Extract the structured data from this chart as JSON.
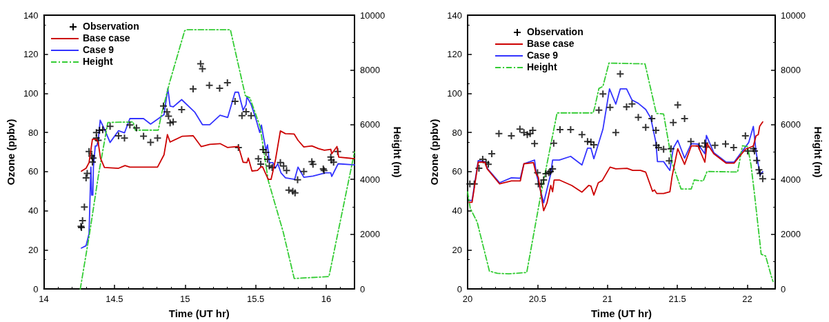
{
  "chart_data": [
    {
      "type": "line",
      "xlabel": "Time (UT hr)",
      "ylabel": "Ozone (ppbv)",
      "y2label": "Height (m)",
      "xlim": [
        14,
        16.2
      ],
      "xticks": [
        14,
        14.5,
        15,
        15.5,
        16
      ],
      "ylim": [
        0,
        140
      ],
      "yticks": [
        0,
        20,
        40,
        60,
        80,
        100,
        120,
        140
      ],
      "y2lim": [
        0,
        10000
      ],
      "y2ticks": [
        0,
        2000,
        4000,
        6000,
        8000,
        10000
      ],
      "grid": false,
      "legend": "top left",
      "series": [
        {
          "name": "Observation",
          "type": "scatter",
          "marker": "cross",
          "color": "#000000",
          "x": [
            14.263,
            14.266,
            14.274,
            14.287,
            14.299,
            14.307,
            14.32,
            14.339,
            14.349,
            14.344,
            14.372,
            14.372,
            14.385,
            14.394,
            14.417,
            14.469,
            14.529,
            14.571,
            14.609,
            14.656,
            14.706,
            14.756,
            14.805,
            14.847,
            14.872,
            14.883,
            14.894,
            14.916,
            14.976,
            15.057,
            15.11,
            15.123,
            15.172,
            15.245,
            15.3,
            15.354,
            15.378,
            15.403,
            15.432,
            15.468,
            15.519,
            15.536,
            15.552,
            15.573,
            15.584,
            15.597,
            15.617,
            15.675,
            15.698,
            15.719,
            15.735,
            15.763,
            15.779,
            15.797,
            15.841,
            15.898,
            15.906,
            15.979,
            15.984,
            16.032,
            16.036,
            16.052,
            16.081
          ],
          "values": [
            32,
            31.4,
            34.9,
            41.9,
            56.8,
            59.1,
            70.3,
            68,
            66.9,
            64.9,
            77.1,
            80,
            76,
            81.1,
            81.4,
            83.1,
            78.3,
            77.1,
            83.8,
            82.3,
            78.1,
            74.9,
            77.1,
            93.5,
            90.5,
            88.3,
            84.9,
            85.4,
            91.7,
            102.3,
            115.1,
            112.6,
            104.1,
            102.6,
            105.4,
            95.9,
            72.3,
            88.6,
            90.6,
            88.6,
            66.6,
            63.8,
            71.2,
            69.8,
            66.3,
            62.9,
            62.1,
            64.6,
            62.9,
            60.6,
            50.5,
            49.9,
            49.1,
            55.8,
            60,
            65.1,
            63.7,
            61.4,
            60.6,
            67.4,
            65.9,
            64.8,
            70.3
          ]
        },
        {
          "name": "Base case",
          "type": "line",
          "marker": "none",
          "line_style": "solid",
          "color": "#cc0000",
          "x": [
            14.266,
            14.299,
            14.32,
            14.344,
            14.372,
            14.385,
            14.401,
            14.429,
            14.529,
            14.575,
            14.609,
            14.805,
            14.851,
            14.875,
            14.894,
            14.981,
            15.058,
            15.114,
            15.175,
            15.248,
            15.302,
            15.378,
            15.411,
            15.438,
            15.448,
            15.474,
            15.513,
            15.536,
            15.549,
            15.589,
            15.609,
            15.622,
            15.641,
            15.675,
            15.711,
            15.773,
            15.8,
            15.841,
            15.898,
            15.946,
            15.987,
            16.032,
            16.039,
            16.076,
            16.088,
            16.2
          ],
          "values": [
            60.2,
            61.7,
            64.6,
            76.6,
            76.6,
            74.9,
            66.9,
            62.1,
            61.7,
            63.1,
            62.3,
            62.3,
            68.6,
            78.9,
            75.1,
            78.1,
            78.3,
            72.8,
            73.9,
            74.3,
            72.3,
            72.9,
            64.8,
            64.6,
            66.9,
            60.3,
            60.6,
            62.3,
            62.5,
            56,
            56,
            60,
            66.3,
            80.8,
            79.4,
            79.2,
            76,
            72.6,
            73.1,
            71.7,
            70.9,
            71.4,
            69.1,
            72.8,
            67.4,
            66.6
          ]
        },
        {
          "name": "Case 9",
          "type": "line",
          "marker": "none",
          "line_style": "solid",
          "color": "#3333ff",
          "x": [
            14.266,
            14.299,
            14.32,
            14.333,
            14.339,
            14.347,
            14.351,
            14.364,
            14.375,
            14.385,
            14.399,
            14.429,
            14.469,
            14.529,
            14.571,
            14.609,
            14.706,
            14.756,
            14.851,
            14.878,
            14.894,
            14.916,
            14.976,
            15.07,
            15.123,
            15.175,
            15.248,
            15.302,
            15.354,
            15.378,
            15.411,
            15.432,
            15.438,
            15.468,
            15.5,
            15.529,
            15.541,
            15.554,
            15.573,
            15.584,
            15.597,
            15.622,
            15.638,
            15.657,
            15.679,
            15.711,
            15.776,
            15.8,
            15.841,
            15.906,
            15.995,
            16.032,
            16.039,
            16.084,
            16.2
          ],
          "values": [
            20.9,
            22.1,
            28.2,
            62.3,
            48,
            48,
            62.3,
            73.1,
            73.1,
            76,
            86.3,
            81.7,
            74.9,
            80.9,
            79.8,
            87.1,
            87.1,
            84.3,
            89.1,
            102.6,
            93.5,
            93.1,
            96.8,
            90.3,
            84,
            84,
            88.8,
            87.7,
            100.6,
            100.6,
            91.4,
            94.3,
            98.3,
            94.3,
            87.4,
            80,
            83.8,
            78.3,
            70.9,
            73.7,
            64.6,
            64.6,
            61.7,
            64,
            59.4,
            56.8,
            56,
            62.3,
            57.1,
            57.7,
            59.4,
            59.4,
            57.5,
            64,
            63.4
          ]
        },
        {
          "name": "Height",
          "type": "line",
          "axis": "y2",
          "marker": "none",
          "line_style": "dashed",
          "color": "#33cc33",
          "x": [
            14.258,
            14.323,
            14.388,
            14.453,
            14.632,
            14.648,
            14.81,
            14.834,
            14.891,
            14.997,
            15.013,
            15.321,
            15.427,
            15.459,
            15.532,
            15.589,
            15.695,
            15.773,
            16.019,
            16.2
          ],
          "values": [
            0,
            2000,
            4200,
            6080,
            6100,
            5800,
            5800,
            6400,
            7550,
            9430,
            9470,
            9470,
            7060,
            6980,
            5920,
            3960,
            2080,
            380,
            450,
            5000
          ]
        }
      ]
    },
    {
      "type": "line",
      "xlabel": "Time (UT hr)",
      "ylabel": "Ozone (ppbv)",
      "y2label": "Height (m)",
      "xlim": [
        20,
        22.2
      ],
      "xticks": [
        20,
        20.5,
        21,
        21.5,
        22
      ],
      "ylim": [
        0,
        140
      ],
      "yticks": [
        0,
        20,
        40,
        60,
        80,
        100,
        120,
        140
      ],
      "y2lim": [
        0,
        10000
      ],
      "y2ticks": [
        0,
        2000,
        4000,
        6000,
        8000,
        10000
      ],
      "grid": false,
      "legend": "top left",
      "series": [
        {
          "name": "Observation",
          "type": "scatter",
          "marker": "cross",
          "color": "#000000",
          "x": [
            20.016,
            20.048,
            20.081,
            20.108,
            20.132,
            20.148,
            20.173,
            20.224,
            20.313,
            20.374,
            20.403,
            20.427,
            20.447,
            20.466,
            20.479,
            20.5,
            20.506,
            20.527,
            20.544,
            20.56,
            20.581,
            20.592,
            20.608,
            20.616,
            20.661,
            20.737,
            20.818,
            20.858,
            20.882,
            20.903,
            20.939,
            20.968,
            21.019,
            21.06,
            21.092,
            21.137,
            21.176,
            21.221,
            21.274,
            21.318,
            21.347,
            21.35,
            21.366,
            21.402,
            21.455,
            21.442,
            21.471,
            21.503,
            21.552,
            21.597,
            21.656,
            21.697,
            21.705,
            21.769,
            21.845,
            21.903,
            21.987,
            22.003,
            22.044,
            22.052,
            22.068,
            22.084,
            22.092,
            22.111
          ],
          "values": [
            53.7,
            53.7,
            61.7,
            66.3,
            64.6,
            63.7,
            69.1,
            79.4,
            78.3,
            81.7,
            80,
            78.9,
            79.4,
            81.1,
            74.3,
            59.4,
            53.7,
            53.7,
            55.7,
            58.9,
            59.4,
            60,
            61.4,
            74.5,
            81.5,
            81.5,
            78.9,
            75.4,
            75.1,
            73.7,
            91.4,
            99.7,
            92.8,
            80,
            109.9,
            93.1,
            94.6,
            87.7,
            82.6,
            87.1,
            81.1,
            73.4,
            72.3,
            71.4,
            71.7,
            65.5,
            85.1,
            94.1,
            87.1,
            75.4,
            73.1,
            74.6,
            72.6,
            73.4,
            74.1,
            72.3,
            78.3,
            70.5,
            71.7,
            70.5,
            65.7,
            60.9,
            59.1,
            56.3
          ]
        },
        {
          "name": "Base case",
          "type": "line",
          "marker": "none",
          "line_style": "solid",
          "color": "#cc0000",
          "x": [
            20.011,
            20.032,
            20.076,
            20.124,
            20.14,
            20.229,
            20.313,
            20.377,
            20.403,
            20.471,
            20.49,
            20.506,
            20.544,
            20.568,
            20.595,
            20.608,
            20.619,
            20.656,
            20.745,
            20.818,
            20.866,
            20.882,
            20.903,
            20.935,
            20.963,
            21.019,
            21.06,
            21.14,
            21.181,
            21.237,
            21.274,
            21.323,
            21.337,
            21.353,
            21.402,
            21.447,
            21.463,
            21.503,
            21.552,
            21.6,
            21.648,
            21.697,
            21.713,
            21.761,
            21.85,
            21.906,
            21.987,
            22.044,
            22.063,
            22.079,
            22.089,
            22.111
          ],
          "values": [
            44.3,
            44.3,
            64.8,
            64.8,
            61.4,
            53.7,
            55.2,
            55.2,
            64,
            64.6,
            58.9,
            57.1,
            40,
            44,
            52.9,
            49.7,
            55.7,
            55.7,
            52.9,
            49.5,
            52.9,
            52.6,
            48,
            54.3,
            55.4,
            62.3,
            61.4,
            61.7,
            60.6,
            60.6,
            59.7,
            49.9,
            50.6,
            48.8,
            48.8,
            49.7,
            57.7,
            71.7,
            63.7,
            73.1,
            73.1,
            64.8,
            74.3,
            69.1,
            64.3,
            64.3,
            71.4,
            73.1,
            78.3,
            78.9,
            83.1,
            85.4
          ]
        },
        {
          "name": "Case 9",
          "type": "line",
          "marker": "none",
          "line_style": "solid",
          "color": "#3333ff",
          "x": [
            20.011,
            20.032,
            20.076,
            20.124,
            20.14,
            20.229,
            20.313,
            20.377,
            20.403,
            20.479,
            20.49,
            20.544,
            20.595,
            20.608,
            20.656,
            20.737,
            20.818,
            20.858,
            20.882,
            20.903,
            20.968,
            21.015,
            21.06,
            21.092,
            21.137,
            21.176,
            21.221,
            21.274,
            21.31,
            21.347,
            21.358,
            21.402,
            21.447,
            21.471,
            21.503,
            21.552,
            21.6,
            21.648,
            21.697,
            21.708,
            21.761,
            21.85,
            21.906,
            22.011,
            22.044,
            22.063,
            22.092,
            22.111
          ],
          "values": [
            45.3,
            45.3,
            65.6,
            65.1,
            61.7,
            54.3,
            56.8,
            56.6,
            64,
            65.9,
            59.4,
            44,
            58.9,
            65.9,
            65.9,
            67.8,
            63.4,
            72,
            72,
            66.6,
            81.7,
            102.3,
            94.5,
            102.3,
            102.3,
            96.6,
            94.9,
            91.8,
            87.4,
            74.9,
            65.1,
            65.1,
            60.6,
            72,
            76,
            66.9,
            74.3,
            74.1,
            69.1,
            78.5,
            69.7,
            64.8,
            64.8,
            74.9,
            83.1,
            70.3,
            58.3,
            60
          ]
        },
        {
          "name": "Height",
          "type": "line",
          "axis": "y2",
          "marker": "none",
          "line_style": "dashed",
          "color": "#33cc33",
          "x": [
            20,
            20.019,
            20.068,
            20.156,
            20.213,
            20.294,
            20.423,
            20.519,
            20.64,
            20.898,
            20.911,
            20.939,
            20.968,
            21.011,
            21.269,
            21.35,
            21.402,
            21.463,
            21.527,
            21.6,
            21.621,
            21.685,
            21.713,
            21.931,
            21.966,
            22.003,
            22.027,
            22.052,
            22.1,
            22.132,
            22.173,
            22.185
          ],
          "values": [
            3550,
            2940,
            2450,
            650,
            570,
            550,
            600,
            3310,
            6430,
            6430,
            6670,
            7320,
            7400,
            8250,
            8220,
            6410,
            6390,
            4610,
            3650,
            3650,
            3980,
            3940,
            4290,
            4270,
            5230,
            5200,
            4530,
            3470,
            1270,
            1200,
            450,
            270
          ]
        }
      ]
    }
  ]
}
